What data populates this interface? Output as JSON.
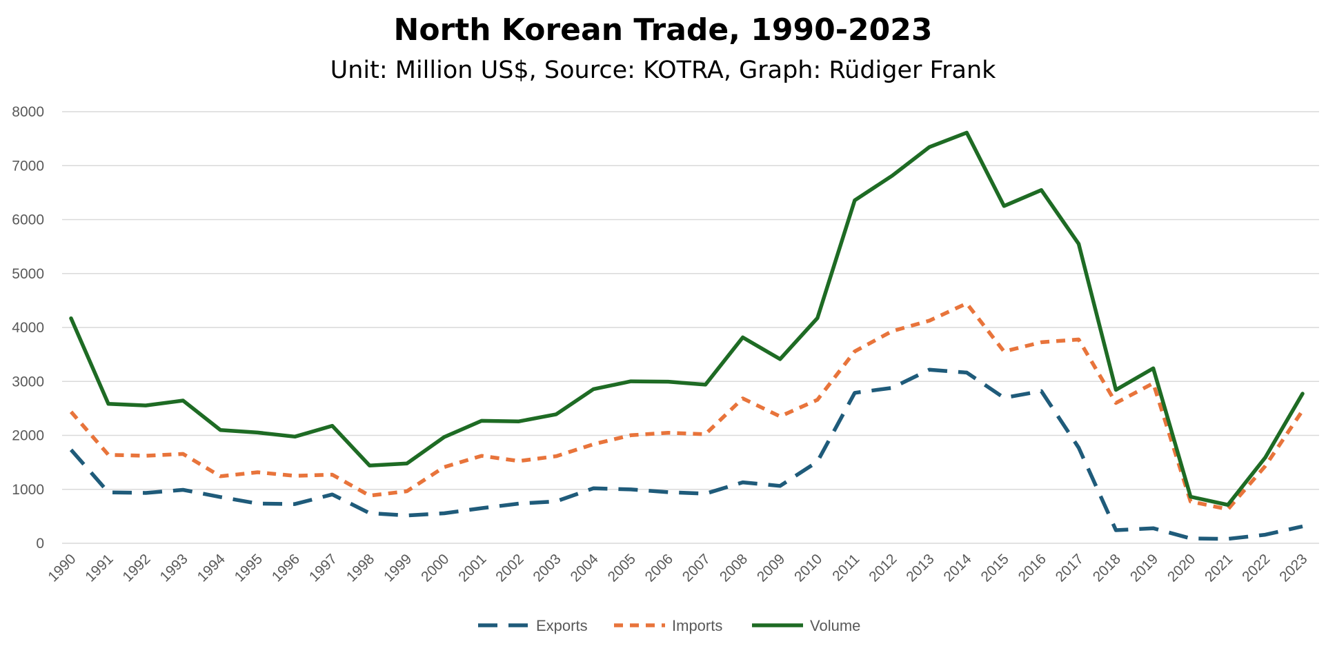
{
  "chart_data": {
    "type": "line",
    "title": "North Korean Trade, 1990-2023",
    "subtitle": "Unit: Million US$, Source: KOTRA, Graph: Rüdiger Frank",
    "categories": [
      "1990",
      "1991",
      "1992",
      "1993",
      "1994",
      "1995",
      "1996",
      "1997",
      "1998",
      "1999",
      "2000",
      "2001",
      "2002",
      "2003",
      "2004",
      "2005",
      "2006",
      "2007",
      "2008",
      "2009",
      "2010",
      "2011",
      "2012",
      "2013",
      "2014",
      "2015",
      "2016",
      "2017",
      "2018",
      "2019",
      "2020",
      "2021",
      "2022",
      "2023"
    ],
    "ylim": [
      0,
      8000
    ],
    "yticks": [
      0,
      1000,
      2000,
      3000,
      4000,
      5000,
      6000,
      7000,
      8000
    ],
    "grid": true,
    "legend_position": "bottom",
    "series": [
      {
        "name": "Exports",
        "color": "#1f5b7a",
        "style": "long-dash",
        "values": [
          1733,
          945,
          933,
          990,
          858,
          736,
          727,
          905,
          559,
          515,
          556,
          650,
          735,
          777,
          1020,
          998,
          947,
          919,
          1130,
          1063,
          1513,
          2789,
          2880,
          3218,
          3164,
          2697,
          2821,
          1772,
          243,
          278,
          89,
          82,
          159,
          313
        ]
      },
      {
        "name": "Imports",
        "color": "#e8743b",
        "style": "short-dash",
        "values": [
          2437,
          1639,
          1622,
          1656,
          1242,
          1316,
          1250,
          1272,
          883,
          965,
          1413,
          1620,
          1525,
          1614,
          1837,
          2003,
          2049,
          2022,
          2685,
          2351,
          2660,
          3557,
          3931,
          4126,
          4446,
          3555,
          3726,
          3778,
          2600,
          2966,
          774,
          630,
          1430,
          2460
        ]
      },
      {
        "name": "Volume",
        "color": "#1e6b24",
        "style": "solid",
        "values": [
          4170,
          2584,
          2555,
          2646,
          2100,
          2052,
          1977,
          2177,
          1442,
          1480,
          1969,
          2270,
          2260,
          2391,
          2857,
          3002,
          2996,
          2941,
          3816,
          3414,
          4174,
          6357,
          6811,
          7345,
          7611,
          6252,
          6547,
          5550,
          2843,
          3244,
          863,
          712,
          1589,
          2773
        ]
      }
    ]
  }
}
